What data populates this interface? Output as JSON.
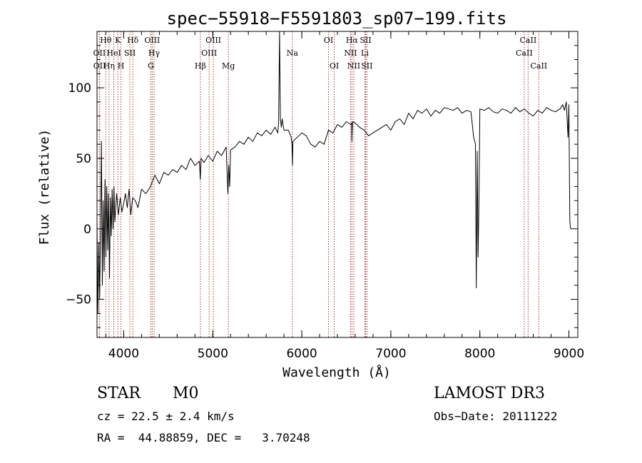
{
  "chart_data": {
    "type": "line",
    "title": "spec−55918−F5591803_sp07−199.fits",
    "xlabel": "Wavelength (Å)",
    "ylabel": "Flux (relative)",
    "xlim": [
      3700,
      9100
    ],
    "ylim": [
      -77,
      140
    ],
    "xticks": [
      4000,
      5000,
      6000,
      7000,
      8000,
      9000
    ],
    "yticks": [
      -50,
      0,
      50,
      100
    ],
    "ytick_labels": [
      "−50",
      "0",
      "50",
      "100"
    ],
    "series": [
      {
        "name": "flux",
        "x": [
          3700,
          3710,
          3720,
          3730,
          3740,
          3750,
          3760,
          3770,
          3780,
          3790,
          3800,
          3810,
          3820,
          3830,
          3840,
          3850,
          3860,
          3870,
          3880,
          3890,
          3900,
          3920,
          3940,
          3960,
          3980,
          4000,
          4020,
          4040,
          4060,
          4080,
          4100,
          4130,
          4160,
          4200,
          4250,
          4300,
          4350,
          4400,
          4450,
          4500,
          4550,
          4600,
          4650,
          4700,
          4750,
          4800,
          4850,
          4860,
          4870,
          4900,
          4950,
          5000,
          5050,
          5100,
          5150,
          5170,
          5180,
          5190,
          5200,
          5250,
          5300,
          5350,
          5400,
          5450,
          5500,
          5550,
          5600,
          5650,
          5700,
          5730,
          5740,
          5750,
          5760,
          5770,
          5780,
          5800,
          5850,
          5880,
          5890,
          5895,
          5900,
          5950,
          6000,
          6050,
          6100,
          6150,
          6200,
          6250,
          6300,
          6350,
          6400,
          6450,
          6500,
          6550,
          6560,
          6563,
          6570,
          6600,
          6650,
          6700,
          6750,
          6800,
          6850,
          6900,
          6950,
          7000,
          7050,
          7100,
          7150,
          7200,
          7250,
          7300,
          7350,
          7400,
          7450,
          7500,
          7550,
          7600,
          7650,
          7700,
          7750,
          7800,
          7850,
          7900,
          7930,
          7950,
          7960,
          7970,
          7980,
          7990,
          8000,
          8050,
          8100,
          8150,
          8200,
          8250,
          8300,
          8350,
          8400,
          8450,
          8500,
          8550,
          8600,
          8650,
          8700,
          8750,
          8800,
          8850,
          8900,
          8930,
          8950,
          8970,
          8990,
          9000,
          9010,
          9020
        ],
        "values": [
          5,
          -60,
          -10,
          -50,
          0,
          62,
          -40,
          20,
          -30,
          35,
          -20,
          30,
          -15,
          25,
          -35,
          22,
          -5,
          28,
          0,
          30,
          5,
          25,
          10,
          22,
          12,
          18,
          25,
          15,
          28,
          10,
          22,
          20,
          15,
          28,
          25,
          30,
          38,
          32,
          40,
          38,
          42,
          40,
          45,
          42,
          50,
          45,
          48,
          35,
          50,
          47,
          52,
          48,
          55,
          52,
          58,
          25,
          45,
          30,
          56,
          58,
          62,
          60,
          65,
          62,
          68,
          66,
          70,
          67,
          72,
          68,
          75,
          140,
          78,
          72,
          78,
          70,
          70,
          65,
          60,
          45,
          62,
          65,
          68,
          66,
          60,
          58,
          62,
          60,
          70,
          68,
          74,
          72,
          76,
          74,
          75,
          62,
          76,
          75,
          72,
          70,
          66,
          68,
          70,
          72,
          74,
          70,
          76,
          78,
          74,
          82,
          78,
          84,
          82,
          85,
          80,
          84,
          82,
          86,
          85,
          84,
          86,
          82,
          84,
          83,
          65,
          60,
          -42,
          55,
          -20,
          22,
          85,
          84,
          86,
          83,
          82,
          85,
          84,
          82,
          86,
          83,
          85,
          82,
          80,
          84,
          82,
          86,
          84,
          83,
          85,
          88,
          84,
          90,
          65,
          88,
          5,
          0
        ]
      }
    ],
    "lines": [
      {
        "label": "Hθ",
        "x": 3798,
        "row": 1
      },
      {
        "label": "OII",
        "x": 3727,
        "row": 2
      },
      {
        "label": "OII",
        "x": 3729,
        "row": 3
      },
      {
        "label": "Hη",
        "x": 3835,
        "row": 3
      },
      {
        "label": "HeI",
        "x": 3889,
        "row": 2
      },
      {
        "label": "K",
        "x": 3934,
        "row": 1
      },
      {
        "label": "H",
        "x": 3969,
        "row": 3
      },
      {
        "label": "SII",
        "x": 4069,
        "row": 2
      },
      {
        "label": "Hδ",
        "x": 4102,
        "row": 1
      },
      {
        "label": "G",
        "x": 4305,
        "row": 3
      },
      {
        "label": "OIII",
        "x": 4320,
        "row": 1
      },
      {
        "label": "Hγ",
        "x": 4341,
        "row": 2
      },
      {
        "label": "Hβ",
        "x": 4861,
        "row": 3
      },
      {
        "label": "OIII",
        "x": 4959,
        "row": 2
      },
      {
        "label": "OIII",
        "x": 5007,
        "row": 1
      },
      {
        "label": "Mg",
        "x": 5175,
        "row": 3
      },
      {
        "label": "Na",
        "x": 5894,
        "row": 2
      },
      {
        "label": "OI",
        "x": 6300,
        "row": 1
      },
      {
        "label": "OI",
        "x": 6364,
        "row": 3
      },
      {
        "label": "NII",
        "x": 6548,
        "row": 2
      },
      {
        "label": "NII",
        "x": 6584,
        "row": 3
      },
      {
        "label": "Hα",
        "x": 6563,
        "row": 1
      },
      {
        "label": "SII",
        "x": 6717,
        "row": 1
      },
      {
        "label": "Li",
        "x": 6708,
        "row": 2
      },
      {
        "label": "SII",
        "x": 6731,
        "row": 3
      },
      {
        "label": "CaII",
        "x": 8498,
        "row": 2
      },
      {
        "label": "CaII",
        "x": 8542,
        "row": 1
      },
      {
        "label": "CaII",
        "x": 8662,
        "row": 3
      }
    ]
  },
  "info": {
    "class": "STAR",
    "subclass": "M0",
    "survey": "LAMOST DR3",
    "cz": "cz = 22.5 ± 2.4 km/s",
    "obs_date": "Obs−Date: 20111222",
    "radec": "RA =  44.88859, DEC =   3.70248"
  }
}
